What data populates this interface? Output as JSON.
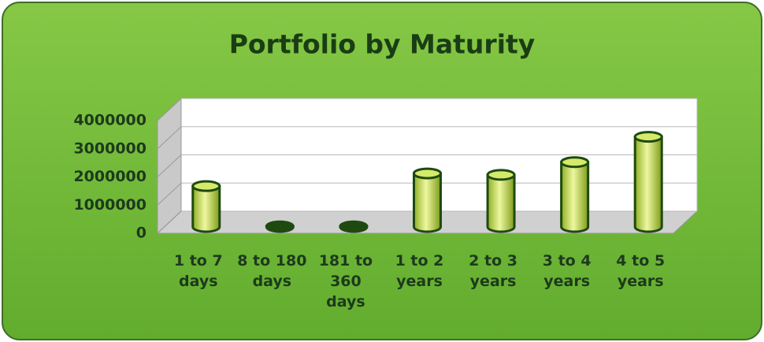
{
  "chart_data": {
    "type": "bar",
    "title": "Portfolio by Maturity",
    "categories": [
      "1 to 7 days",
      "8 to 180 days",
      "181 to 360 days",
      "1 to 2 years",
      "2 to 3 years",
      "3 to 4 years",
      "4 to 5 years"
    ],
    "values": [
      1450000,
      20000,
      20000,
      1900000,
      1850000,
      2300000,
      3200000
    ],
    "color": "#c8e04a",
    "ylim": [
      0,
      4000000
    ],
    "yticks": [
      0,
      1000000,
      2000000,
      3000000,
      4000000
    ],
    "grid": true
  }
}
